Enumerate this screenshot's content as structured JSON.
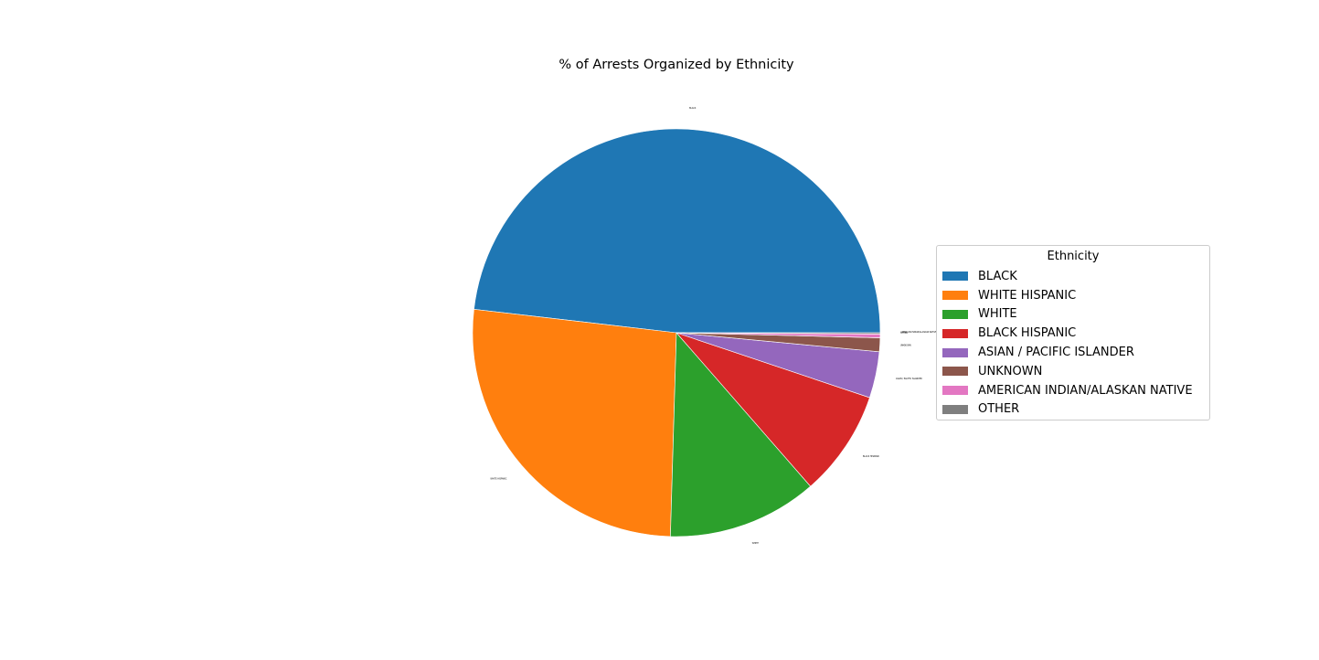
{
  "chart_data": {
    "type": "pie",
    "title": "% of Arrests Organized by Ethnicity",
    "legend_title": "Ethnicity",
    "legend_position": "right",
    "start_angle_deg": 0,
    "direction": "counterclockwise",
    "slices": [
      {
        "label": "BLACK",
        "value": 48.6,
        "color": "#1f77b4"
      },
      {
        "label": "WHITE HISPANIC",
        "value": 26.6,
        "color": "#ff7f0e"
      },
      {
        "label": "WHITE",
        "value": 12.0,
        "color": "#2ca02c"
      },
      {
        "label": "BLACK HISPANIC",
        "value": 8.5,
        "color": "#d62728"
      },
      {
        "label": "ASIAN / PACIFIC ISLANDER",
        "value": 3.7,
        "color": "#9467bd"
      },
      {
        "label": "UNKNOWN",
        "value": 1.1,
        "color": "#8c564b"
      },
      {
        "label": "AMERICAN INDIAN/ALASKAN NATIVE",
        "value": 0.3,
        "color": "#e377c2"
      },
      {
        "label": "OTHER",
        "value": 0.1,
        "color": "#7f7f7f"
      }
    ]
  }
}
